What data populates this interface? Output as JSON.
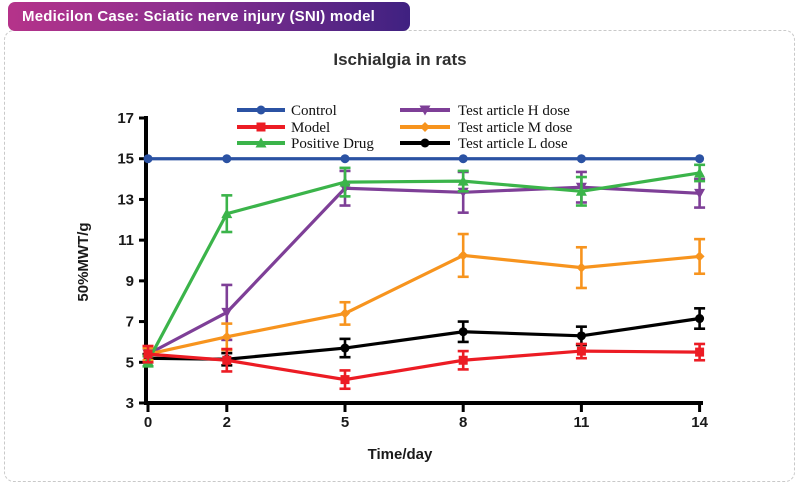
{
  "badge": {
    "label": "Medicilon Case: Sciatic nerve injury (SNI) model"
  },
  "colors": {
    "badge_gradient_left": "#b5338a",
    "badge_gradient_right": "#3f2181",
    "card_border": "#c9c9c9",
    "axis": "#000000",
    "title_text": "#2f2f2f"
  },
  "chart_data": {
    "type": "line",
    "title": "Ischialgia in rats",
    "xlabel": "Time/day",
    "ylabel": "50%MWT/g",
    "x": [
      0,
      2,
      5,
      8,
      11,
      14
    ],
    "xticks": [
      0,
      2,
      5,
      8,
      11,
      14
    ],
    "yticks": [
      3,
      5,
      7,
      9,
      11,
      13,
      15,
      17
    ],
    "ylim": [
      3,
      17
    ],
    "xlim": [
      0,
      14
    ],
    "grid": false,
    "legend_position": "inside-top, two columns",
    "error_bars": true,
    "series": [
      {
        "name": "Control",
        "color": "#2b52a3",
        "marker": "circle",
        "values": [
          15,
          15,
          15,
          15,
          15,
          15
        ],
        "errors": [
          0,
          0,
          0,
          0,
          0,
          0
        ]
      },
      {
        "name": "Model",
        "color": "#ec1c24",
        "marker": "square",
        "values": [
          5.4,
          5.1,
          4.15,
          5.1,
          5.55,
          5.5
        ],
        "errors": [
          0.4,
          0.55,
          0.45,
          0.45,
          0.35,
          0.4
        ]
      },
      {
        "name": "Positive Drug",
        "color": "#3bb44a",
        "marker": "triangle-up",
        "values": [
          5.05,
          12.3,
          13.85,
          13.9,
          13.4,
          14.3
        ],
        "errors": [
          0.25,
          0.9,
          0.7,
          0.5,
          0.7,
          0.4
        ]
      },
      {
        "name": "Test article H dose",
        "color": "#7e3f97",
        "marker": "triangle-down",
        "values": [
          5.4,
          7.45,
          13.55,
          13.35,
          13.6,
          13.3
        ],
        "errors": [
          0.3,
          1.35,
          0.85,
          1.0,
          0.75,
          0.7
        ]
      },
      {
        "name": "Test article M dose",
        "color": "#f7941e",
        "marker": "diamond",
        "values": [
          5.4,
          6.25,
          7.4,
          10.25,
          9.65,
          10.2
        ],
        "errors": [
          0.3,
          0.65,
          0.55,
          1.05,
          1.0,
          0.85
        ]
      },
      {
        "name": "Test article L dose",
        "color": "#000000",
        "marker": "circle",
        "values": [
          5.2,
          5.15,
          5.7,
          6.5,
          6.3,
          7.15
        ],
        "errors": [
          0.2,
          0.3,
          0.45,
          0.5,
          0.45,
          0.5
        ]
      }
    ]
  }
}
